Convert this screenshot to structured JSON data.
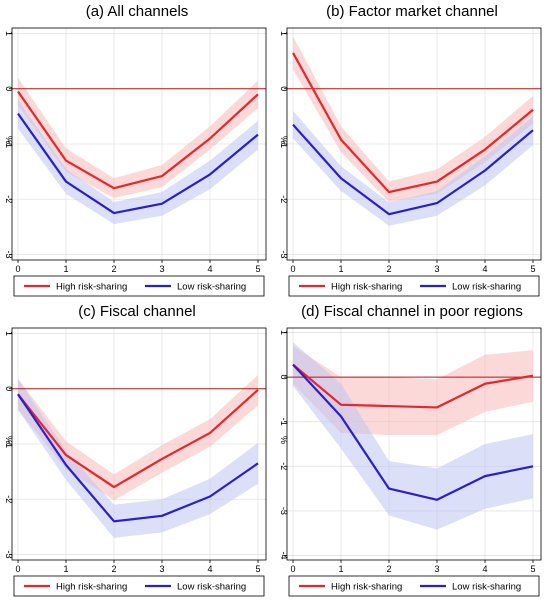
{
  "colors": {
    "high": "#e8262b",
    "low": "#2a1fd0",
    "high_band": "#f7b9ba",
    "low_band": "#bfc4f3",
    "zero_line": "#b0181e",
    "grid": "#e3e3e3"
  },
  "chart_data": [
    {
      "type": "line",
      "title": "(a) All channels",
      "ylabel": "%",
      "x": [
        0,
        1,
        2,
        3,
        4,
        5
      ],
      "xlim": [
        0,
        5
      ],
      "ylim": [
        -3.1,
        1.1
      ],
      "yticks": [
        1,
        0,
        -1,
        -2,
        -3
      ],
      "ytick_labels": [
        "1",
        "0",
        "-1",
        "-2",
        "-3"
      ],
      "xtick_labels": [
        "0",
        "1",
        "2",
        "3",
        "4",
        "5"
      ],
      "grid": true,
      "legend_position": "bottom",
      "series": [
        {
          "name": "High risk-sharing",
          "key": "high",
          "values": [
            -0.05,
            -1.3,
            -1.8,
            -1.58,
            -0.9,
            -0.1
          ],
          "lower": [
            -0.3,
            -1.5,
            -1.98,
            -1.78,
            -1.1,
            -0.35
          ],
          "upper": [
            0.2,
            -1.08,
            -1.62,
            -1.38,
            -0.68,
            0.15
          ]
        },
        {
          "name": "Low risk-sharing",
          "key": "low",
          "values": [
            -0.45,
            -1.68,
            -2.25,
            -2.08,
            -1.55,
            -0.83
          ],
          "lower": [
            -0.72,
            -1.9,
            -2.45,
            -2.3,
            -1.82,
            -1.1
          ],
          "upper": [
            -0.2,
            -1.45,
            -2.05,
            -1.87,
            -1.3,
            -0.58
          ]
        }
      ]
    },
    {
      "type": "line",
      "title": "(b) Factor market channel",
      "ylabel": "%",
      "x": [
        0,
        1,
        2,
        3,
        4,
        5
      ],
      "xlim": [
        0,
        5
      ],
      "ylim": [
        -3.1,
        1.1
      ],
      "yticks": [
        1,
        0,
        -1,
        -2,
        -3
      ],
      "ytick_labels": [
        "1",
        "0",
        "-1",
        "-2",
        "-3"
      ],
      "xtick_labels": [
        "0",
        "1",
        "2",
        "3",
        "4",
        "5"
      ],
      "grid": true,
      "legend_position": "bottom",
      "series": [
        {
          "name": "High risk-sharing",
          "key": "high",
          "values": [
            0.65,
            -0.92,
            -1.87,
            -1.68,
            -1.1,
            -0.38
          ],
          "lower": [
            0.35,
            -1.15,
            -2.05,
            -1.9,
            -1.33,
            -0.63
          ],
          "upper": [
            0.95,
            -0.68,
            -1.68,
            -1.46,
            -0.87,
            -0.13
          ]
        },
        {
          "name": "Low risk-sharing",
          "key": "low",
          "values": [
            -0.65,
            -1.62,
            -2.27,
            -2.07,
            -1.48,
            -0.75
          ],
          "lower": [
            -0.9,
            -1.85,
            -2.48,
            -2.3,
            -1.75,
            -1.02
          ],
          "upper": [
            -0.4,
            -1.4,
            -2.06,
            -1.85,
            -1.22,
            -0.5
          ]
        }
      ]
    },
    {
      "type": "line",
      "title": "(c) Fiscal channel",
      "ylabel": "%",
      "x": [
        0,
        1,
        2,
        3,
        4,
        5
      ],
      "xlim": [
        0,
        5
      ],
      "ylim": [
        -3.1,
        1.1
      ],
      "yticks": [
        1,
        0,
        -1,
        -2,
        -3
      ],
      "ytick_labels": [
        "1",
        "0",
        "-1",
        "-2",
        "-3"
      ],
      "xtick_labels": [
        "0",
        "1",
        "2",
        "3",
        "4",
        "5"
      ],
      "grid": true,
      "legend_position": "bottom",
      "series": [
        {
          "name": "High risk-sharing",
          "key": "high",
          "values": [
            -0.1,
            -1.2,
            -1.78,
            -1.27,
            -0.8,
            -0.02
          ],
          "lower": [
            -0.38,
            -1.45,
            -2.02,
            -1.52,
            -1.05,
            -0.3
          ],
          "upper": [
            0.18,
            -0.95,
            -1.55,
            -1.02,
            -0.55,
            0.25
          ]
        },
        {
          "name": "Low risk-sharing",
          "key": "low",
          "values": [
            -0.1,
            -1.38,
            -2.4,
            -2.3,
            -1.95,
            -1.35
          ],
          "lower": [
            -0.38,
            -1.65,
            -2.7,
            -2.6,
            -2.27,
            -1.72
          ],
          "upper": [
            0.18,
            -1.12,
            -2.1,
            -2.0,
            -1.63,
            -0.98
          ]
        }
      ]
    },
    {
      "type": "line",
      "title": "(d) Fiscal channel in poor regions",
      "ylabel": "%",
      "x": [
        0,
        1,
        2,
        3,
        4,
        5
      ],
      "xlim": [
        0,
        5
      ],
      "ylim": [
        -4.1,
        1.1
      ],
      "yticks": [
        1,
        0,
        -1,
        -2,
        -3,
        -4
      ],
      "ytick_labels": [
        "1",
        "0",
        "-1",
        "-2",
        "-3",
        "-4"
      ],
      "xtick_labels": [
        "0",
        "1",
        "2",
        "3",
        "4",
        "5"
      ],
      "grid": true,
      "legend_position": "bottom",
      "series": [
        {
          "name": "High risk-sharing",
          "key": "high",
          "values": [
            0.28,
            -0.62,
            -0.65,
            -0.68,
            -0.15,
            0.03
          ],
          "lower": [
            -0.15,
            -1.25,
            -1.3,
            -1.3,
            -0.78,
            -0.55
          ],
          "upper": [
            0.7,
            0.0,
            0.0,
            -0.05,
            0.5,
            0.6
          ]
        },
        {
          "name": "Low risk-sharing",
          "key": "low",
          "values": [
            0.28,
            -0.88,
            -2.5,
            -2.75,
            -2.22,
            -2.0
          ],
          "lower": [
            -0.2,
            -1.6,
            -3.1,
            -3.42,
            -2.95,
            -2.72
          ],
          "upper": [
            0.78,
            -0.15,
            -1.88,
            -2.05,
            -1.5,
            -1.28
          ]
        }
      ]
    }
  ]
}
